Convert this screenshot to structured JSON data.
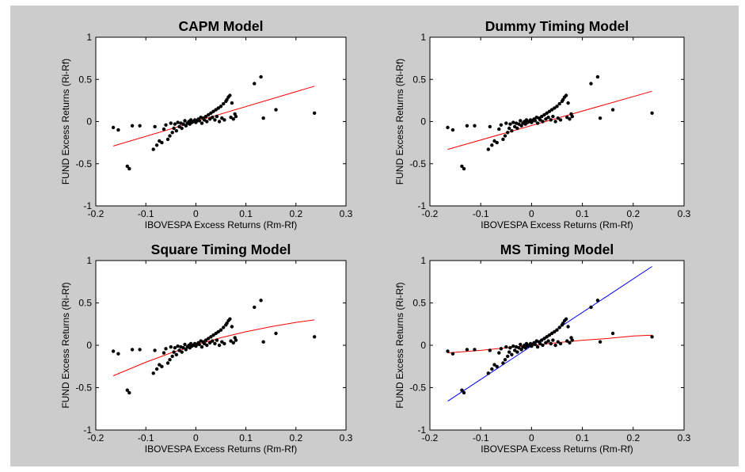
{
  "chart_data": [
    {
      "type": "scatter",
      "title": "CAPM Model",
      "xlabel": "IBOVESPA Excess Returns (Rm-Rf)",
      "ylabel": "FUND Excess Returns (Ri-Rf)",
      "xlim": [
        -0.2,
        0.3
      ],
      "ylim": [
        -1,
        1
      ],
      "xticks": [
        "-0.2",
        "-0.1",
        "0",
        "0.1",
        "0.2",
        "0.3"
      ],
      "yticks": [
        "-1",
        "-0.5",
        "0",
        "0.5",
        "1"
      ],
      "points_ref": "points",
      "curves": [
        {
          "color": "#ff0000",
          "x": [
            -0.165,
            0.237
          ],
          "y": [
            -0.29,
            0.42
          ]
        }
      ]
    },
    {
      "type": "scatter",
      "title": "Dummy Timing Model",
      "xlabel": "IBOVESPA Excess Returns (Rm-Rf)",
      "ylabel": "FUND Excess Returns (Ri-Rf)",
      "xlim": [
        -0.2,
        0.3
      ],
      "ylim": [
        -1,
        1
      ],
      "xticks": [
        "-0.2",
        "-0.1",
        "0",
        "0.1",
        "0.2",
        "0.3"
      ],
      "yticks": [
        "-1",
        "-0.5",
        "0",
        "0.5",
        "1"
      ],
      "points_ref": "points",
      "curves": [
        {
          "color": "#ff0000",
          "x": [
            -0.165,
            0.237
          ],
          "y": [
            -0.33,
            0.36
          ]
        }
      ]
    },
    {
      "type": "scatter",
      "title": "Square Timing Model",
      "xlabel": "IBOVESPA Excess Returns (Rm-Rf)",
      "ylabel": "FUND Excess Returns (Ri-Rf)",
      "xlim": [
        -0.2,
        0.3
      ],
      "ylim": [
        -1,
        1
      ],
      "xticks": [
        "-0.2",
        "-0.1",
        "0",
        "0.1",
        "0.2",
        "0.3"
      ],
      "yticks": [
        "-1",
        "-0.5",
        "0",
        "0.5",
        "1"
      ],
      "points_ref": "points",
      "curves": [
        {
          "color": "#ff0000",
          "x": [
            -0.165,
            -0.1,
            -0.05,
            0,
            0.05,
            0.1,
            0.15,
            0.2,
            0.237
          ],
          "y": [
            -0.36,
            -0.2,
            -0.09,
            0.0,
            0.09,
            0.16,
            0.22,
            0.27,
            0.3
          ]
        }
      ]
    },
    {
      "type": "scatter",
      "title": "MS Timing Model",
      "xlabel": "IBOVESPA Excess Returns (Rm-Rf)",
      "ylabel": "FUND Excess Returns (Ri-Rf)",
      "xlim": [
        -0.2,
        0.3
      ],
      "ylim": [
        -1,
        1
      ],
      "xticks": [
        "-0.2",
        "-0.1",
        "0",
        "0.1",
        "0.2",
        "0.3"
      ],
      "yticks": [
        "-1",
        "-0.5",
        "0",
        "0.5",
        "1"
      ],
      "points_ref": "points",
      "curves": [
        {
          "color": "#0000ff",
          "x": [
            -0.165,
            0.237
          ],
          "y": [
            -0.66,
            0.93
          ]
        },
        {
          "color": "#ff0000",
          "x": [
            -0.165,
            -0.1,
            -0.05,
            0,
            0.05,
            0.1,
            0.15,
            0.2,
            0.237
          ],
          "y": [
            -0.09,
            -0.06,
            -0.03,
            0.0,
            0.03,
            0.06,
            0.08,
            0.11,
            0.12
          ]
        }
      ]
    }
  ],
  "points": [
    [
      -0.165,
      -0.07
    ],
    [
      -0.155,
      -0.1
    ],
    [
      -0.137,
      -0.53
    ],
    [
      -0.133,
      -0.56
    ],
    [
      -0.127,
      -0.05
    ],
    [
      -0.112,
      -0.05
    ],
    [
      -0.085,
      -0.33
    ],
    [
      -0.082,
      -0.06
    ],
    [
      -0.078,
      -0.28
    ],
    [
      -0.073,
      -0.23
    ],
    [
      -0.068,
      -0.25
    ],
    [
      -0.064,
      -0.09
    ],
    [
      -0.06,
      -0.04
    ],
    [
      -0.056,
      -0.21
    ],
    [
      -0.052,
      -0.17
    ],
    [
      -0.05,
      -0.02
    ],
    [
      -0.047,
      -0.13
    ],
    [
      -0.044,
      -0.08
    ],
    [
      -0.042,
      -0.03
    ],
    [
      -0.039,
      -0.11
    ],
    [
      -0.036,
      -0.01
    ],
    [
      -0.033,
      -0.06
    ],
    [
      -0.03,
      -0.02
    ],
    [
      -0.028,
      -0.08
    ],
    [
      -0.025,
      -0.03
    ],
    [
      -0.022,
      0.01
    ],
    [
      -0.02,
      -0.05
    ],
    [
      -0.017,
      -0.02
    ],
    [
      -0.014,
      0.0
    ],
    [
      -0.012,
      -0.03
    ],
    [
      -0.01,
      0.02
    ],
    [
      -0.008,
      -0.01
    ],
    [
      -0.005,
      0.0
    ],
    [
      -0.002,
      0.02
    ],
    [
      0.0,
      -0.01
    ],
    [
      0.002,
      0.01
    ],
    [
      0.005,
      0.03
    ],
    [
      0.007,
      0.01
    ],
    [
      0.01,
      0.05
    ],
    [
      0.012,
      -0.02
    ],
    [
      0.015,
      0.04
    ],
    [
      0.017,
      0.02
    ],
    [
      0.02,
      0.06
    ],
    [
      0.022,
      0.0
    ],
    [
      0.025,
      0.08
    ],
    [
      0.028,
      0.03
    ],
    [
      0.03,
      0.1
    ],
    [
      0.033,
      0.05
    ],
    [
      0.035,
      0.12
    ],
    [
      0.038,
      0.02
    ],
    [
      0.04,
      0.14
    ],
    [
      0.042,
      0.06
    ],
    [
      0.045,
      0.16
    ],
    [
      0.047,
      0.0
    ],
    [
      0.05,
      0.18
    ],
    [
      0.052,
      0.04
    ],
    [
      0.055,
      0.21
    ],
    [
      0.057,
      0.02
    ],
    [
      0.06,
      0.24
    ],
    [
      0.062,
      0.26
    ],
    [
      0.065,
      0.29
    ],
    [
      0.068,
      0.31
    ],
    [
      0.07,
      0.05
    ],
    [
      0.072,
      0.22
    ],
    [
      0.075,
      0.03
    ],
    [
      0.078,
      0.09
    ],
    [
      0.08,
      0.06
    ],
    [
      0.117,
      0.45
    ],
    [
      0.13,
      0.53
    ],
    [
      0.135,
      0.04
    ],
    [
      0.16,
      0.14
    ],
    [
      0.237,
      0.1
    ]
  ]
}
